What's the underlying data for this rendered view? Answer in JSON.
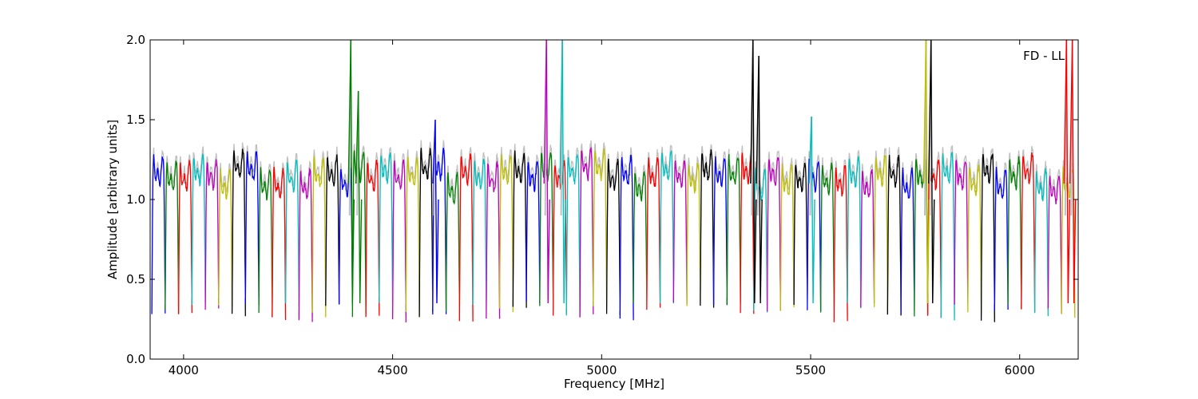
{
  "chart_data": {
    "type": "line",
    "title": "",
    "xlabel": "Frequency [MHz]",
    "ylabel": "Amplitude [arbitrary units]",
    "annotation": "FD - LL",
    "xlim": [
      3920,
      6140
    ],
    "ylim": [
      0.0,
      2.0
    ],
    "x_ticks": [
      4000,
      4500,
      5000,
      5500,
      6000
    ],
    "y_ticks": [
      0.0,
      0.5,
      1.0,
      1.5,
      2.0
    ],
    "x_tick_labels": [
      "4000",
      "4500",
      "5000",
      "5500",
      "6000"
    ],
    "y_tick_labels": [
      "0.0",
      "0.5",
      "1.0",
      "1.5",
      "2.0"
    ],
    "grid": false,
    "legend": "none",
    "channel_width_mhz": 32,
    "channel_start_mhz": 3924,
    "channel_count": 69,
    "channel_peak_amplitude": 1.22,
    "channel_edge_amplitude": 0.3,
    "series_colors": [
      "#0000ff",
      "#008000",
      "#ff0000",
      "#00bfbf",
      "#bf00bf",
      "#bfbf00",
      "#000000"
    ],
    "reference_color": "#c0c0c0",
    "rfi_spikes": [
      {
        "x": 4400,
        "y": 2.0,
        "color": "#008000"
      },
      {
        "x": 4418,
        "y": 1.68,
        "color": "#008000"
      },
      {
        "x": 4602,
        "y": 1.5,
        "color": "#0000ff"
      },
      {
        "x": 4868,
        "y": 2.0,
        "color": "#bf00bf"
      },
      {
        "x": 4906,
        "y": 2.0,
        "color": "#00bfbf"
      },
      {
        "x": 5362,
        "y": 2.0,
        "color": "#000000"
      },
      {
        "x": 5376,
        "y": 1.9,
        "color": "#000000"
      },
      {
        "x": 5502,
        "y": 1.52,
        "color": "#00bfbf"
      },
      {
        "x": 5776,
        "y": 2.0,
        "color": "#bfbf00"
      },
      {
        "x": 5788,
        "y": 2.0,
        "color": "#000000"
      },
      {
        "x": 6112,
        "y": 2.0,
        "color": "#ff0000"
      },
      {
        "x": 6126,
        "y": 2.0,
        "color": "#ff0000"
      }
    ]
  }
}
